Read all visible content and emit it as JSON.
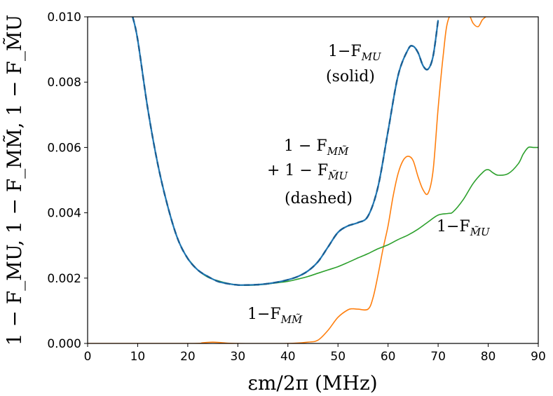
{
  "chart_data": {
    "type": "line",
    "xlabel": "εm/2π (MHz)",
    "ylabel": "1 − F_MU, 1 − F_MM̃, 1 − F_M̃U",
    "xlim": [
      0,
      90
    ],
    "ylim": [
      0,
      0.01
    ],
    "x_ticks": [
      "0",
      "10",
      "20",
      "30",
      "40",
      "50",
      "60",
      "70",
      "80",
      "90"
    ],
    "y_ticks": [
      "0.000",
      "0.002",
      "0.004",
      "0.006",
      "0.008",
      "0.010"
    ],
    "grid": false,
    "colors": {
      "blue": "#1f77b4",
      "orange": "#ff7f0e",
      "green": "#2ca02c"
    },
    "series": [
      {
        "key": "F_MU",
        "style": "solid+dashed",
        "color": "#1f77b4",
        "x": [
          9,
          10,
          12,
          14,
          16,
          18,
          20,
          22,
          24,
          26,
          28,
          30,
          32,
          34,
          36,
          38,
          40,
          42,
          44,
          46,
          48,
          50,
          52,
          54,
          56,
          58,
          60,
          62,
          64,
          65,
          66,
          67,
          68,
          69,
          70
        ],
        "y": [
          0.01,
          0.0093,
          0.0072,
          0.0055,
          0.0042,
          0.0032,
          0.0026,
          0.00225,
          0.00205,
          0.0019,
          0.00183,
          0.00179,
          0.00179,
          0.0018,
          0.00183,
          0.00188,
          0.00195,
          0.00205,
          0.00222,
          0.0025,
          0.00295,
          0.0034,
          0.0036,
          0.0037,
          0.0039,
          0.0048,
          0.0065,
          0.0082,
          0.009,
          0.0091,
          0.0089,
          0.0085,
          0.0084,
          0.0088,
          0.0099
        ]
      },
      {
        "key": "F_MMt",
        "style": "solid",
        "color": "#ff7f0e",
        "x": [
          0,
          20,
          23,
          25,
          27,
          30,
          40,
          44,
          46,
          48,
          50,
          52,
          53,
          54,
          56,
          57,
          58,
          59,
          60,
          61,
          62,
          63,
          64,
          65,
          66,
          67,
          68,
          69,
          70,
          71,
          72,
          74,
          76,
          77,
          78,
          78.8,
          79.5
        ],
        "y": [
          0,
          0,
          2e-05,
          4e-05,
          2e-05,
          0,
          0,
          4e-05,
          0.0001,
          0.0004,
          0.0008,
          0.00103,
          0.00106,
          0.00105,
          0.00105,
          0.0014,
          0.0021,
          0.0029,
          0.0036,
          0.0045,
          0.0052,
          0.0056,
          0.00573,
          0.0056,
          0.0051,
          0.0047,
          0.0046,
          0.0053,
          0.0072,
          0.0088,
          0.0099,
          0.0103,
          0.0101,
          0.0098,
          0.0097,
          0.0099,
          0.01
        ]
      },
      {
        "key": "F_MtU",
        "style": "solid",
        "color": "#2ca02c",
        "x": [
          20,
          22,
          24,
          26,
          28,
          30,
          32,
          34,
          36,
          38,
          40,
          42,
          44,
          46,
          48,
          50,
          52,
          54,
          56,
          58,
          60,
          62,
          64,
          66,
          68,
          70,
          72,
          73,
          75,
          77,
          79,
          80,
          81,
          82,
          84,
          86,
          87,
          88,
          89,
          90
        ],
        "y": [
          0.0026,
          0.00225,
          0.00203,
          0.00192,
          0.00184,
          0.00179,
          0.00178,
          0.00179,
          0.00182,
          0.00186,
          0.0019,
          0.00197,
          0.00205,
          0.00215,
          0.00225,
          0.00235,
          0.00248,
          0.00262,
          0.00275,
          0.0029,
          0.00302,
          0.00318,
          0.00332,
          0.0035,
          0.00372,
          0.00393,
          0.00398,
          0.00403,
          0.0044,
          0.0049,
          0.00525,
          0.00532,
          0.00522,
          0.00515,
          0.0052,
          0.0055,
          0.0058,
          0.006,
          0.006,
          0.006
        ]
      }
    ],
    "annotations": {
      "mu_line": "1−F",
      "mu_sub": "MU",
      "solid": "(solid)",
      "sum_line1": "1 − F",
      "sum_line1_sub": "MM̃",
      "sum_line2": "+ 1 − F",
      "sum_line2_sub": "M̃U",
      "dashed": "(dashed)",
      "mtu_line": "1−F",
      "mtu_sub": "M̃U",
      "mmt_line": "1−F",
      "mmt_sub": "MM̃"
    }
  }
}
